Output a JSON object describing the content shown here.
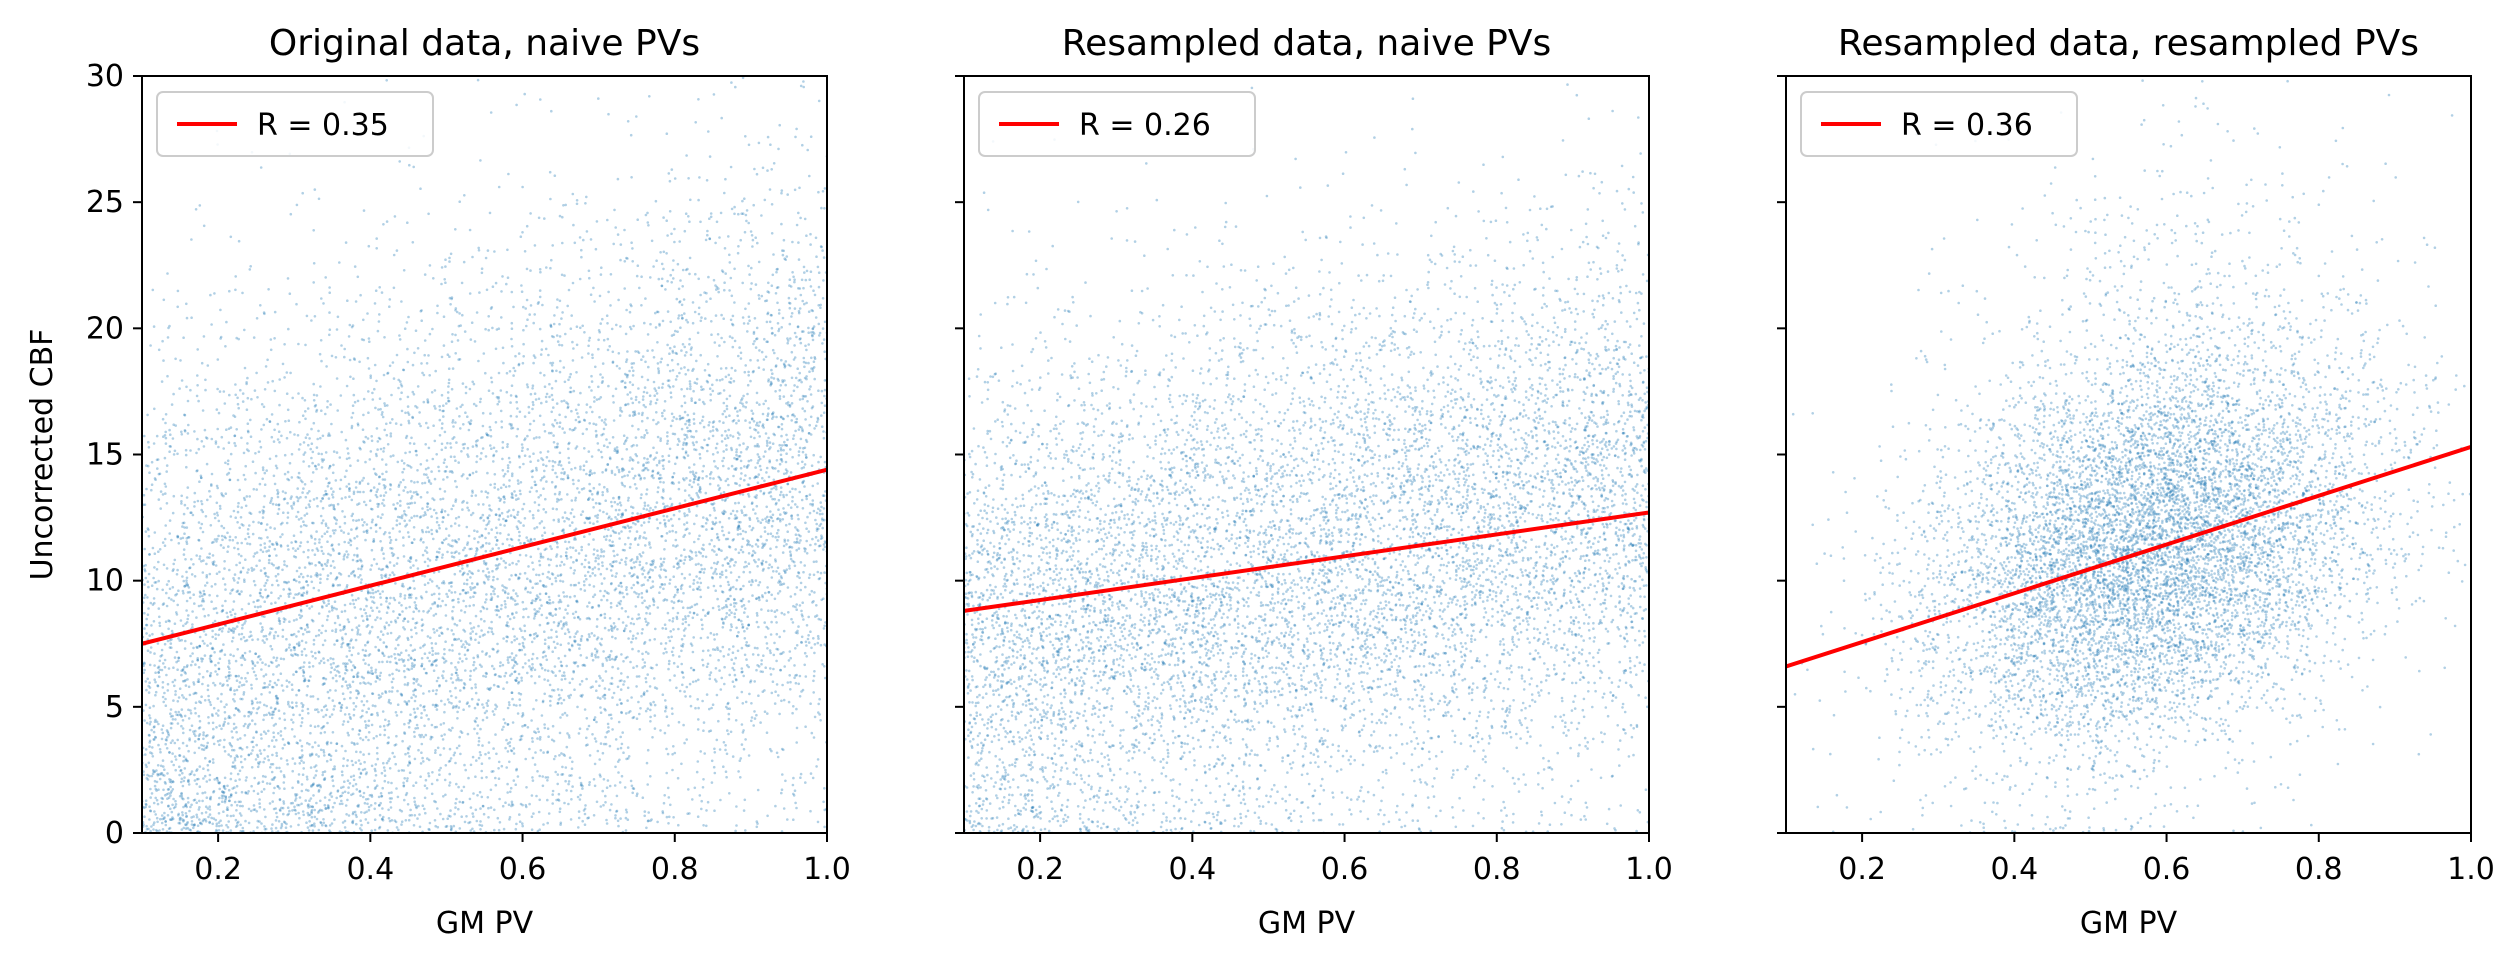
{
  "figure": {
    "panels": [
      {
        "title": "Original data, naive PVs",
        "xlabel": "GM PV",
        "ylabel": "Uncorrected CBF",
        "legend_label": "R = 0.35"
      },
      {
        "title": "Resampled data, naive PVs",
        "xlabel": "GM PV",
        "ylabel": "",
        "legend_label": "R = 0.26"
      },
      {
        "title": "Resampled data, resampled PVs",
        "xlabel": "GM PV",
        "ylabel": "",
        "legend_label": "R = 0.36"
      }
    ]
  },
  "chart_data": [
    {
      "type": "scatter",
      "title": "Original data, naive PVs",
      "xlabel": "GM PV",
      "ylabel": "Uncorrected CBF",
      "xlim": [
        0.1,
        1.0
      ],
      "ylim": [
        0,
        30
      ],
      "xticks": [
        "0.2",
        "0.4",
        "0.6",
        "0.8",
        "1.0"
      ],
      "yticks": [
        "0",
        "5",
        "10",
        "15",
        "20",
        "25",
        "30"
      ],
      "legend_placement": "upper-left",
      "point_color": "#1f77b4",
      "line_color": "#ff0000",
      "fit_line": {
        "label": "R = 0.35",
        "x": [
          0.1,
          1.0
        ],
        "y": [
          7.5,
          14.4
        ]
      },
      "scatter_distribution": {
        "x_range": [
          0.1,
          1.0
        ],
        "x_skew": "uniform",
        "y_mean_at_x0_1": 5.5,
        "y_mean_at_x1_0": 14.0,
        "y_sd": 6.0,
        "n_points": 9000
      }
    },
    {
      "type": "scatter",
      "title": "Resampled data, naive PVs",
      "xlabel": "GM PV",
      "ylabel": "",
      "xlim": [
        0.1,
        1.0
      ],
      "ylim": [
        0,
        30
      ],
      "xticks": [
        "0.2",
        "0.4",
        "0.6",
        "0.8",
        "1.0"
      ],
      "yticks": [
        "0",
        "5",
        "10",
        "15",
        "20",
        "25",
        "30"
      ],
      "legend_placement": "upper-left",
      "point_color": "#1f77b4",
      "line_color": "#ff0000",
      "fit_line": {
        "label": "R = 0.26",
        "x": [
          0.1,
          1.0
        ],
        "y": [
          8.8,
          12.7
        ]
      },
      "scatter_distribution": {
        "x_range": [
          0.1,
          1.0
        ],
        "x_skew": "uniform",
        "y_mean_at_x0_1": 7.5,
        "y_mean_at_x1_0": 13.0,
        "y_sd": 5.0,
        "n_points": 9000
      }
    },
    {
      "type": "scatter",
      "title": "Resampled data, resampled PVs",
      "xlabel": "GM PV",
      "ylabel": "",
      "xlim": [
        0.1,
        1.0
      ],
      "ylim": [
        0,
        30
      ],
      "xticks": [
        "0.2",
        "0.4",
        "0.6",
        "0.8",
        "1.0"
      ],
      "yticks": [
        "0",
        "5",
        "10",
        "15",
        "20",
        "25",
        "30"
      ],
      "legend_placement": "upper-left",
      "point_color": "#1f77b4",
      "line_color": "#ff0000",
      "fit_line": {
        "label": "R = 0.36",
        "x": [
          0.1,
          1.0
        ],
        "y": [
          6.6,
          15.3
        ]
      },
      "scatter_distribution": {
        "x_center": 0.58,
        "x_sd": 0.15,
        "x_skew": "normal",
        "y_center": 11.0,
        "y_sd": 4.5,
        "n_points": 9000
      }
    }
  ]
}
